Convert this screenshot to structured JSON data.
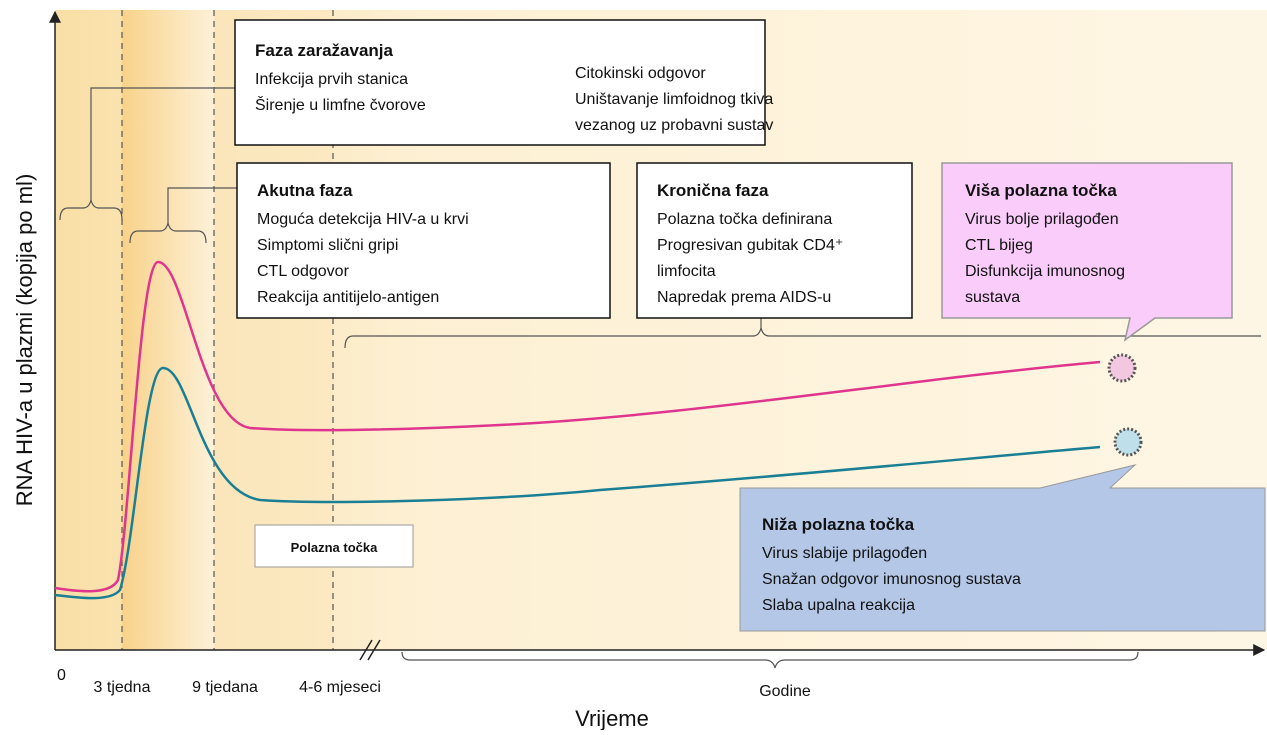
{
  "y_axis_label": "RNA HIV-a u plazmi (kopija po ml)",
  "x_axis": {
    "label": "Vrijeme",
    "ticks": [
      "0",
      "3 tjedna",
      "9 tjedana",
      "4-6 mjeseci",
      "Godine"
    ]
  },
  "infection_phase": {
    "title": "Faza zaražavanja",
    "left": [
      "Infekcija prvih stanica",
      "Širenje u limfne čvorove"
    ],
    "right": [
      "Citokinski odgovor",
      "Uništavanje limfoidnog tkiva",
      "vezanog uz probavni sustav"
    ]
  },
  "acute_phase": {
    "title": "Akutna faza",
    "lines": [
      "Moguća detekcija HIV-a u krvi",
      "Simptomi slični gripi",
      "CTL odgovor",
      "Reakcija antitijelo-antigen"
    ]
  },
  "chronic_phase": {
    "title": "Kronična faza",
    "lines": [
      "Polazna točka definirana",
      "Progresivan gubitak CD4⁺",
      "limfocita",
      "Napredak prema AIDS-u"
    ]
  },
  "higher_setpoint": {
    "title": "Viša polazna točka",
    "lines": [
      "Virus bolje prilagođen",
      "CTL bijeg",
      "Disfunkcija imunosnog",
      "sustava"
    ]
  },
  "lower_setpoint": {
    "title": "Niža polazna točka",
    "lines": [
      "Virus slabije prilagođen",
      "Snažan odgovor imunosnog sustava",
      "Slaba upalna reakcija"
    ]
  },
  "setpoint_label": "Polazna točka"
}
